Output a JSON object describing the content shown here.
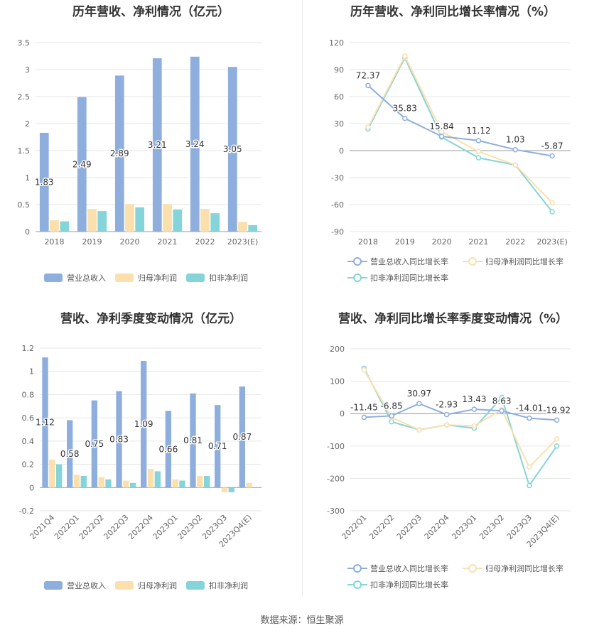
{
  "source": "数据来源：恒生聚源",
  "colors": {
    "revenue": "#8eaedd",
    "net_profit": "#fbdfad",
    "deducted_profit": "#84d4d9",
    "revenue_line": "#8eaedd",
    "net_line": "#fbdfad",
    "deducted_line": "#84d4d9",
    "grid": "#e6e6e6",
    "axis_text": "#666666"
  },
  "chart_data": [
    {
      "id": "annual-bar",
      "type": "bar",
      "title": "历年营收、净利情况（亿元）",
      "categories": [
        "2018",
        "2019",
        "2020",
        "2021",
        "2022",
        "2023(E)"
      ],
      "ylim": [
        0,
        3.5
      ],
      "yticks": [
        "0",
        "0.5",
        "1",
        "1.5",
        "2",
        "2.5",
        "3",
        "3.5"
      ],
      "series": [
        {
          "name": "营业总收入",
          "values": [
            1.83,
            2.49,
            2.89,
            3.21,
            3.24,
            3.05
          ],
          "labels": [
            "1.83",
            "2.49",
            "2.89",
            "3.21",
            "3.24",
            "3.05"
          ]
        },
        {
          "name": "归母净利润",
          "values": [
            0.21,
            0.42,
            0.51,
            0.51,
            0.42,
            0.18
          ]
        },
        {
          "name": "扣非净利润",
          "values": [
            0.19,
            0.38,
            0.45,
            0.41,
            0.34,
            0.12
          ]
        }
      ],
      "legend": "bottom",
      "grid": true
    },
    {
      "id": "annual-line",
      "type": "line",
      "title": "历年营收、净利同比增长率情况（%）",
      "categories": [
        "2018",
        "2019",
        "2020",
        "2021",
        "2022",
        "2023(E)"
      ],
      "ylim": [
        -90,
        120
      ],
      "yticks": [
        "-90",
        "-60",
        "-30",
        "0",
        "30",
        "60",
        "90",
        "120"
      ],
      "series": [
        {
          "name": "营业总收入同比增长率",
          "values": [
            72.37,
            35.83,
            15.84,
            11.12,
            1.03,
            -5.87
          ],
          "labels": [
            "72.37",
            "35.83",
            "15.84",
            "11.12",
            "1.03",
            "-5.87"
          ]
        },
        {
          "name": "归母净利润同比增长率",
          "values": [
            26,
            105,
            21,
            -1,
            -16,
            -58
          ]
        },
        {
          "name": "扣非净利润同比增长率",
          "values": [
            24,
            103,
            15,
            -8,
            -16,
            -68
          ]
        }
      ],
      "legend": "bottom",
      "grid": true
    },
    {
      "id": "quarter-bar",
      "type": "bar",
      "title": "营收、净利季度变动情况（亿元）",
      "categories": [
        "2021Q4",
        "2022Q1",
        "2022Q2",
        "2022Q3",
        "2022Q4",
        "2023Q1",
        "2023Q2",
        "2023Q3",
        "2023Q4(E)"
      ],
      "ylim": [
        -0.2,
        1.2
      ],
      "yticks": [
        "-0.2",
        "0",
        "0.2",
        "0.4",
        "0.6",
        "0.8",
        "1",
        "1.2"
      ],
      "series": [
        {
          "name": "营业总收入",
          "values": [
            1.12,
            0.58,
            0.75,
            0.83,
            1.09,
            0.66,
            0.81,
            0.71,
            0.87
          ],
          "labels": [
            "1.12",
            "0.58",
            "0.75",
            "0.83",
            "1.09",
            "0.66",
            "0.81",
            "0.71",
            "0.87"
          ]
        },
        {
          "name": "归母净利润",
          "values": [
            0.24,
            0.11,
            0.09,
            0.06,
            0.16,
            0.07,
            0.1,
            -0.04,
            0.04
          ]
        },
        {
          "name": "扣非净利润",
          "values": [
            0.2,
            0.1,
            0.07,
            0.04,
            0.14,
            0.06,
            0.1,
            -0.04,
            0
          ]
        }
      ],
      "legend": "bottom",
      "grid": true
    },
    {
      "id": "quarter-line",
      "type": "line",
      "title": "营收、净利同比增长率季度变动情况（%）",
      "categories": [
        "2022Q1",
        "2022Q2",
        "2022Q3",
        "2022Q4",
        "2023Q1",
        "2023Q2",
        "2023Q3",
        "2023Q4(E)"
      ],
      "ylim": [
        -300,
        200
      ],
      "yticks": [
        "-300",
        "-200",
        "-100",
        "0",
        "100",
        "200"
      ],
      "series": [
        {
          "name": "营业总收入同比增长率",
          "values": [
            -11.45,
            -6.85,
            30.97,
            -2.93,
            13.43,
            8.63,
            -14.01,
            -19.92
          ],
          "labels": [
            "-11.45",
            "-6.85",
            "30.97",
            "-2.93",
            "13.43",
            "8.63",
            "-14.01",
            "-19.92"
          ]
        },
        {
          "name": "归母净利润同比增长率",
          "values": [
            135,
            -12,
            -50,
            -35,
            -38,
            12,
            -165,
            -78
          ]
        },
        {
          "name": "扣非净利润同比增长率",
          "values": [
            140,
            -25,
            -50,
            -35,
            -45,
            50,
            -222,
            -100
          ]
        }
      ],
      "legend": "bottom",
      "grid": true
    }
  ]
}
